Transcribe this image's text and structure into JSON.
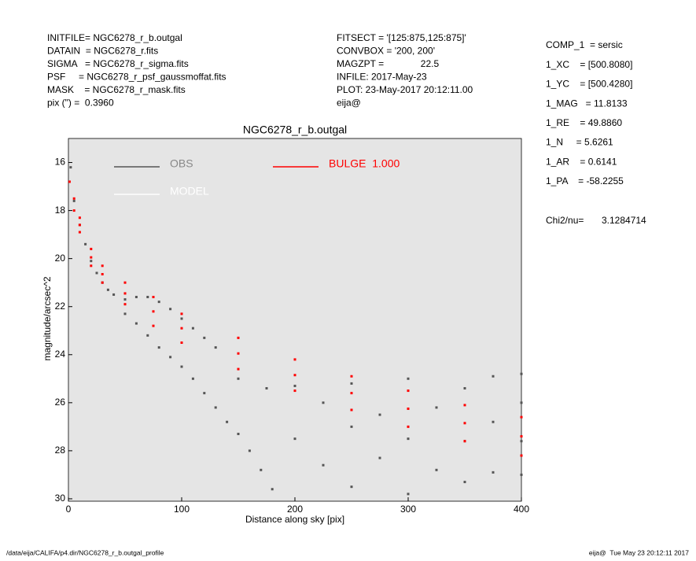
{
  "header": {
    "left": [
      "INITFILE= NGC6278_r_b.outgal",
      "DATAIN  = NGC6278_r.fits",
      "SIGMA   = NGC6278_r_sigma.fits",
      "PSF     = NGC6278_r_psf_gaussmoffat.fits",
      "MASK    = NGC6278_r_mask.fits",
      "pix (\") =  0.3960"
    ],
    "middle": [
      "FITSECT = '[125:875,125:875]'",
      "CONVBOX = '200, 200'",
      "MAGZPT =              22.5",
      "INFILE: 2017-May-23",
      "PLOT: 23-May-2017 20:12:11.00",
      "eija@"
    ]
  },
  "params": [
    "COMP_1  = sersic",
    "1_XC    = [500.8080]",
    "1_YC    = [500.4280]",
    "1_MAG   = 11.8133",
    "1_RE    = 49.8860",
    "1_N     = 5.6261",
    "1_AR    = 0.6141",
    "1_PA    = -58.2255"
  ],
  "chi2": {
    "label": "Chi2/nu=",
    "value": "3.1284714"
  },
  "footer": {
    "left": "/data/eija/CALIFA/p4.dir/NGC6278_r_b.outgal_profile",
    "right": "eija@  Tue May 23 20:12:11 2017"
  },
  "chart_data": {
    "type": "scatter",
    "title": "NGC6278_r_b.outgal",
    "x_label": "Distance along sky [pix]",
    "y_label": "magnitude/arcsec^2",
    "xlim": [
      0,
      400
    ],
    "ylim": [
      30.1,
      15
    ],
    "xticks": [
      0,
      100,
      200,
      300,
      400
    ],
    "yticks": [
      16,
      18,
      20,
      22,
      24,
      26,
      28,
      30
    ],
    "series": [
      {
        "name": "OBS",
        "color": "#555555",
        "x": [
          2,
          5,
          10,
          15,
          20,
          25,
          30,
          35,
          40,
          50,
          60,
          70,
          80,
          90,
          100,
          110,
          120,
          130,
          50,
          60,
          70,
          80,
          90,
          100,
          110,
          120,
          130,
          140,
          150,
          160,
          170,
          180,
          150,
          175,
          200,
          200,
          225,
          225,
          250,
          250,
          250,
          275,
          275,
          300,
          300,
          300,
          325,
          325,
          350,
          350,
          350,
          375,
          375,
          375,
          400,
          400,
          400,
          400
        ],
        "values": [
          16.2,
          17.6,
          18.6,
          19.4,
          20.1,
          20.6,
          21.0,
          21.3,
          21.5,
          21.7,
          21.6,
          21.6,
          21.8,
          22.1,
          22.5,
          22.9,
          23.3,
          23.7,
          22.3,
          22.7,
          23.2,
          23.7,
          24.1,
          24.5,
          25.0,
          25.6,
          26.2,
          26.8,
          27.3,
          28.0,
          28.8,
          29.6,
          25.0,
          25.4,
          25.3,
          27.5,
          26.0,
          28.6,
          25.2,
          27.0,
          29.5,
          26.5,
          28.3,
          25.0,
          27.5,
          29.8,
          26.2,
          28.8,
          25.4,
          27.6,
          29.3,
          24.9,
          26.8,
          28.9,
          24.8,
          26.0,
          27.6,
          29.0
        ]
      },
      {
        "name": "MODEL",
        "color": "#ffffff",
        "x": [],
        "values": []
      },
      {
        "name": "BULGE  1.000",
        "color": "#ff0000",
        "x": [
          1,
          5,
          10,
          20,
          30,
          50,
          75,
          100,
          150,
          200,
          250,
          300,
          350,
          400,
          5,
          10,
          20,
          30,
          50,
          75,
          100,
          150,
          200,
          250,
          300,
          350,
          400,
          10,
          20,
          30,
          50,
          75,
          100,
          150,
          200,
          250,
          300,
          350,
          400
        ],
        "values": [
          16.8,
          17.5,
          18.3,
          19.6,
          20.3,
          21.0,
          21.6,
          22.3,
          23.3,
          24.2,
          24.9,
          25.5,
          26.1,
          26.6,
          18.0,
          18.9,
          20.3,
          21.0,
          21.9,
          22.8,
          23.5,
          24.6,
          25.5,
          26.3,
          27.0,
          27.6,
          28.2,
          18.6,
          19.95,
          20.65,
          21.45,
          22.2,
          22.9,
          23.95,
          24.85,
          25.6,
          26.25,
          26.85,
          27.4
        ]
      }
    ]
  }
}
